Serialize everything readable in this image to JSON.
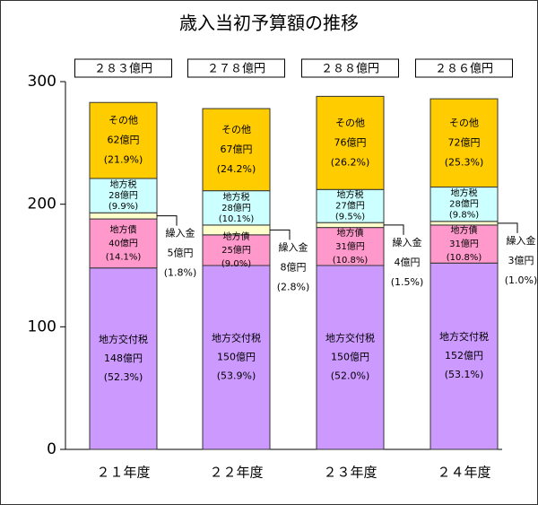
{
  "chart_data": {
    "type": "bar",
    "stacked": true,
    "title": "歳入当初予算額の推移",
    "categories": [
      "２１年度",
      "２２年度",
      "２３年度",
      "２４年度"
    ],
    "totals": [
      "２８３億円",
      "２７８億円",
      "２８８億円",
      "２８６億円"
    ],
    "ylim": [
      0,
      300
    ],
    "yticks": [
      "0",
      "100",
      "200",
      "300"
    ],
    "legend": "none",
    "series": [
      {
        "name": "地方交付税",
        "color": "#cc99ff",
        "values": [
          148,
          150,
          150,
          152
        ],
        "value_labels": [
          "148億円",
          "150億円",
          "150億円",
          "152億円"
        ],
        "pct_labels": [
          "(52.3%)",
          "(53.9%)",
          "(52.0%)",
          "(53.1%)"
        ]
      },
      {
        "name": "地方債",
        "color": "#ff99cc",
        "values": [
          40,
          25,
          31,
          31
        ],
        "value_labels": [
          "40億円",
          "25億円",
          "31億円",
          "31億円"
        ],
        "pct_labels": [
          "(14.1%)",
          "(9.0%)",
          "(10.8%)",
          "(10.8%)"
        ]
      },
      {
        "name": "繰入金",
        "color": "#ffffcc",
        "values": [
          5,
          8,
          4,
          3
        ],
        "value_labels": [
          "5億円",
          "8億円",
          "4億円",
          "3億円"
        ],
        "pct_labels": [
          "(1.8%)",
          "(2.8%)",
          "(1.5%)",
          "(1.0%)"
        ]
      },
      {
        "name": "地方税",
        "color": "#ccffff",
        "values": [
          28,
          28,
          27,
          28
        ],
        "value_labels": [
          "28億円",
          "28億円",
          "27億円",
          "28億円"
        ],
        "pct_labels": [
          "(9.9%)",
          "(10.1%)",
          "(9.5%)",
          "(9.8%)"
        ]
      },
      {
        "name": "その他",
        "color": "#ffcc00",
        "values": [
          62,
          67,
          76,
          72
        ],
        "value_labels": [
          "62億円",
          "67億円",
          "76億円",
          "72億円"
        ],
        "pct_labels": [
          "(21.9%)",
          "(24.2%)",
          "(26.2%)",
          "(25.3%)"
        ]
      }
    ]
  }
}
